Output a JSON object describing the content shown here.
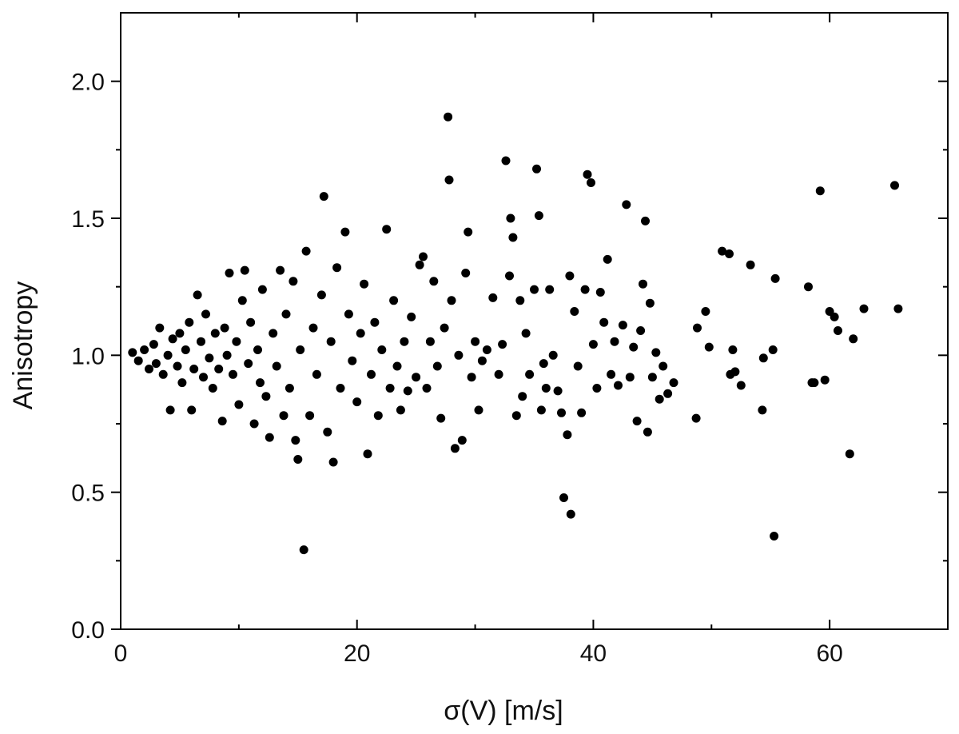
{
  "chart_data": {
    "type": "scatter",
    "title": "",
    "xlabel": "σ(V) [m/s]",
    "ylabel": "Anisotropy",
    "xlim": [
      0,
      70
    ],
    "ylim": [
      0,
      2.25
    ],
    "x_ticks": [
      0,
      20,
      40,
      60
    ],
    "x_minor_ticks": [
      10,
      30,
      50
    ],
    "y_ticks": [
      0.0,
      0.5,
      1.0,
      1.5,
      2.0
    ],
    "y_minor_ticks": [
      0.25,
      0.75,
      1.25,
      1.75
    ],
    "x_tick_labels": [
      "0",
      "20",
      "40",
      "60"
    ],
    "y_tick_labels": [
      "0.0",
      "0.5",
      "1.0",
      "1.5",
      "2.0"
    ],
    "grid": false,
    "legend": "none",
    "marker_color": "#000000",
    "points": [
      [
        1.0,
        1.01
      ],
      [
        1.5,
        0.98
      ],
      [
        2.0,
        1.02
      ],
      [
        2.4,
        0.95
      ],
      [
        2.8,
        1.04
      ],
      [
        3.0,
        0.97
      ],
      [
        3.3,
        1.1
      ],
      [
        3.6,
        0.93
      ],
      [
        4.0,
        1.0
      ],
      [
        4.2,
        0.8
      ],
      [
        4.4,
        1.06
      ],
      [
        4.8,
        0.96
      ],
      [
        5.0,
        1.08
      ],
      [
        5.2,
        0.9
      ],
      [
        5.5,
        1.02
      ],
      [
        5.8,
        1.12
      ],
      [
        6.0,
        0.8
      ],
      [
        6.2,
        0.95
      ],
      [
        6.5,
        1.22
      ],
      [
        6.8,
        1.05
      ],
      [
        7.0,
        0.92
      ],
      [
        7.2,
        1.15
      ],
      [
        7.5,
        0.99
      ],
      [
        7.8,
        0.88
      ],
      [
        8.0,
        1.08
      ],
      [
        8.3,
        0.95
      ],
      [
        8.6,
        0.76
      ],
      [
        8.8,
        1.1
      ],
      [
        9.0,
        1.0
      ],
      [
        9.2,
        1.3
      ],
      [
        9.5,
        0.93
      ],
      [
        9.8,
        1.05
      ],
      [
        10.0,
        0.82
      ],
      [
        10.3,
        1.2
      ],
      [
        10.5,
        1.31
      ],
      [
        10.8,
        0.97
      ],
      [
        11.0,
        1.12
      ],
      [
        11.3,
        0.75
      ],
      [
        11.6,
        1.02
      ],
      [
        11.8,
        0.9
      ],
      [
        12.0,
        1.24
      ],
      [
        12.3,
        0.85
      ],
      [
        12.6,
        0.7
      ],
      [
        12.9,
        1.08
      ],
      [
        13.2,
        0.96
      ],
      [
        13.5,
        1.31
      ],
      [
        13.8,
        0.78
      ],
      [
        14.0,
        1.15
      ],
      [
        14.3,
        0.88
      ],
      [
        14.6,
        1.27
      ],
      [
        14.8,
        0.69
      ],
      [
        15.0,
        0.62
      ],
      [
        15.2,
        1.02
      ],
      [
        15.5,
        0.29
      ],
      [
        15.7,
        1.38
      ],
      [
        16.0,
        0.78
      ],
      [
        16.3,
        1.1
      ],
      [
        16.6,
        0.93
      ],
      [
        17.0,
        1.22
      ],
      [
        17.2,
        1.58
      ],
      [
        17.5,
        0.72
      ],
      [
        17.8,
        1.05
      ],
      [
        18.0,
        0.61
      ],
      [
        18.3,
        1.32
      ],
      [
        18.6,
        0.88
      ],
      [
        19.0,
        1.45
      ],
      [
        19.3,
        1.15
      ],
      [
        19.6,
        0.98
      ],
      [
        20.0,
        0.83
      ],
      [
        20.3,
        1.08
      ],
      [
        20.6,
        1.26
      ],
      [
        20.9,
        0.64
      ],
      [
        21.2,
        0.93
      ],
      [
        21.5,
        1.12
      ],
      [
        21.8,
        0.78
      ],
      [
        22.1,
        1.02
      ],
      [
        22.5,
        1.46
      ],
      [
        22.8,
        0.88
      ],
      [
        23.1,
        1.2
      ],
      [
        23.4,
        0.96
      ],
      [
        23.7,
        0.8
      ],
      [
        24.0,
        1.05
      ],
      [
        24.3,
        0.87
      ],
      [
        24.6,
        1.14
      ],
      [
        25.0,
        0.92
      ],
      [
        25.3,
        1.33
      ],
      [
        25.6,
        1.36
      ],
      [
        25.9,
        0.88
      ],
      [
        26.2,
        1.05
      ],
      [
        26.5,
        1.27
      ],
      [
        26.8,
        0.96
      ],
      [
        27.1,
        0.77
      ],
      [
        27.4,
        1.1
      ],
      [
        27.7,
        1.87
      ],
      [
        27.8,
        1.64
      ],
      [
        28.0,
        1.2
      ],
      [
        28.3,
        0.66
      ],
      [
        28.6,
        1.0
      ],
      [
        28.9,
        0.69
      ],
      [
        29.2,
        1.3
      ],
      [
        29.4,
        1.45
      ],
      [
        29.7,
        0.92
      ],
      [
        30.0,
        1.05
      ],
      [
        30.3,
        0.8
      ],
      [
        30.6,
        0.98
      ],
      [
        31.0,
        1.02
      ],
      [
        31.5,
        1.21
      ],
      [
        32.0,
        0.93
      ],
      [
        32.3,
        1.04
      ],
      [
        32.6,
        1.71
      ],
      [
        32.9,
        1.29
      ],
      [
        33.0,
        1.5
      ],
      [
        33.2,
        1.43
      ],
      [
        33.5,
        0.78
      ],
      [
        33.8,
        1.2
      ],
      [
        34.0,
        0.85
      ],
      [
        34.3,
        1.08
      ],
      [
        34.6,
        0.93
      ],
      [
        35.0,
        1.24
      ],
      [
        35.2,
        1.68
      ],
      [
        35.4,
        1.51
      ],
      [
        35.6,
        0.8
      ],
      [
        35.8,
        0.97
      ],
      [
        36.0,
        0.88
      ],
      [
        36.3,
        1.24
      ],
      [
        36.6,
        1.0
      ],
      [
        37.0,
        0.87
      ],
      [
        37.3,
        0.79
      ],
      [
        37.5,
        0.48
      ],
      [
        37.8,
        0.71
      ],
      [
        38.0,
        1.29
      ],
      [
        38.1,
        0.42
      ],
      [
        38.4,
        1.16
      ],
      [
        38.7,
        0.96
      ],
      [
        39.0,
        0.79
      ],
      [
        39.3,
        1.24
      ],
      [
        39.5,
        1.66
      ],
      [
        39.8,
        1.63
      ],
      [
        40.0,
        1.04
      ],
      [
        40.3,
        0.88
      ],
      [
        40.6,
        1.23
      ],
      [
        40.9,
        1.12
      ],
      [
        41.2,
        1.35
      ],
      [
        41.5,
        0.93
      ],
      [
        41.8,
        1.05
      ],
      [
        42.1,
        0.89
      ],
      [
        42.5,
        1.11
      ],
      [
        42.8,
        1.55
      ],
      [
        43.1,
        0.92
      ],
      [
        43.4,
        1.03
      ],
      [
        43.7,
        0.76
      ],
      [
        44.0,
        1.09
      ],
      [
        44.2,
        1.26
      ],
      [
        44.4,
        1.49
      ],
      [
        44.6,
        0.72
      ],
      [
        44.8,
        1.19
      ],
      [
        45.0,
        0.92
      ],
      [
        45.3,
        1.01
      ],
      [
        45.6,
        0.84
      ],
      [
        45.9,
        0.96
      ],
      [
        46.3,
        0.86
      ],
      [
        46.8,
        0.9
      ],
      [
        48.7,
        0.77
      ],
      [
        48.8,
        1.1
      ],
      [
        49.5,
        1.16
      ],
      [
        49.8,
        1.03
      ],
      [
        50.9,
        1.38
      ],
      [
        51.5,
        1.37
      ],
      [
        51.6,
        0.93
      ],
      [
        51.8,
        1.02
      ],
      [
        52.0,
        0.94
      ],
      [
        52.5,
        0.89
      ],
      [
        53.3,
        1.33
      ],
      [
        54.3,
        0.8
      ],
      [
        54.4,
        0.99
      ],
      [
        55.2,
        1.02
      ],
      [
        55.3,
        0.34
      ],
      [
        55.4,
        1.28
      ],
      [
        58.2,
        1.25
      ],
      [
        58.5,
        0.9
      ],
      [
        58.7,
        0.9
      ],
      [
        59.2,
        1.6
      ],
      [
        59.6,
        0.91
      ],
      [
        60.0,
        1.16
      ],
      [
        60.4,
        1.14
      ],
      [
        60.7,
        1.09
      ],
      [
        61.7,
        0.64
      ],
      [
        62.0,
        1.06
      ],
      [
        62.9,
        1.17
      ],
      [
        65.5,
        1.62
      ],
      [
        65.8,
        1.17
      ]
    ]
  }
}
